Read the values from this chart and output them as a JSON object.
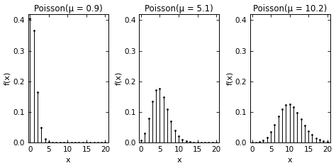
{
  "mus": [
    0.9,
    5.1,
    10.2
  ],
  "titles": [
    "Poisson(μ = 0.9)",
    "Poisson(μ = 5.1)",
    "Poisson(μ = 10.2)"
  ],
  "x_max": 21,
  "y_lim": [
    0,
    0.42
  ],
  "y_ticks": [
    0.0,
    0.1,
    0.2,
    0.3,
    0.4
  ],
  "x_ticks": [
    0,
    5,
    10,
    15,
    20
  ],
  "xlabel": "x",
  "ylabel": "f(x)",
  "bg_color": "#ffffff",
  "line_color": "black",
  "marker_color": "black",
  "title_fontsize": 8.5,
  "axis_label_fontsize": 8,
  "tick_fontsize": 7.5,
  "figsize": [
    4.74,
    2.37
  ],
  "dpi": 100
}
